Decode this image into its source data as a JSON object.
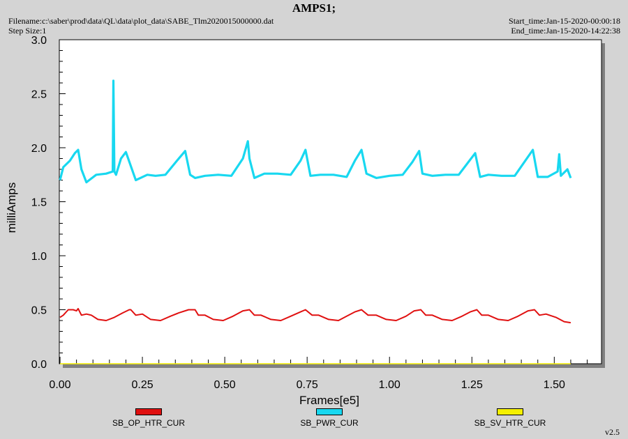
{
  "header": {
    "title": "AMPS1;",
    "filename": "Filename:c:\\saber\\prod\\data\\QL\\data\\plot_data\\SABE_Tlm2020015000000.dat",
    "step_size": "Step Size:1",
    "start_time": "Start_time:Jan-15-2020-00:00:18",
    "end_time": "End_time:Jan-15-2020-14:22:38"
  },
  "footer": {
    "version": "v2.5"
  },
  "colors": {
    "background": "#d4d4d4",
    "plot_area": "#ffffff",
    "SB_OP_HTR_CUR": "#e01010",
    "SB_PWR_CUR": "#18d8f0",
    "SB_SV_HTR_CUR": "#f5f000"
  },
  "chart_data": {
    "type": "line",
    "title": "AMPS1;",
    "xlabel": "Frames[e5]",
    "ylabel": "milliAmps",
    "xlim": [
      0,
      1.62
    ],
    "ylim": [
      0,
      3.0
    ],
    "x_ticks": [
      "0.00",
      "0.25",
      "0.50",
      "0.75",
      "1.00",
      "1.25",
      "1.50"
    ],
    "y_ticks": [
      "0.0",
      "0.5",
      "1.0",
      "1.5",
      "2.0",
      "2.5",
      "3.0"
    ],
    "grid": false,
    "legend_position": "bottom",
    "series": [
      {
        "name": "SB_OP_HTR_CUR",
        "x": [
          0.0,
          0.01,
          0.025,
          0.04,
          0.05,
          0.055,
          0.065,
          0.08,
          0.095,
          0.115,
          0.14,
          0.165,
          0.19,
          0.21,
          0.215,
          0.23,
          0.25,
          0.275,
          0.305,
          0.335,
          0.36,
          0.39,
          0.41,
          0.42,
          0.44,
          0.465,
          0.495,
          0.525,
          0.555,
          0.575,
          0.59,
          0.61,
          0.64,
          0.67,
          0.7,
          0.73,
          0.745,
          0.765,
          0.785,
          0.815,
          0.845,
          0.87,
          0.895,
          0.915,
          0.935,
          0.96,
          0.99,
          1.02,
          1.05,
          1.075,
          1.095,
          1.11,
          1.13,
          1.16,
          1.19,
          1.22,
          1.245,
          1.265,
          1.28,
          1.3,
          1.33,
          1.36,
          1.39,
          1.42,
          1.44,
          1.455,
          1.475,
          1.505,
          1.53,
          1.55
        ],
        "y": [
          0.43,
          0.45,
          0.5,
          0.5,
          0.49,
          0.51,
          0.45,
          0.46,
          0.45,
          0.41,
          0.4,
          0.43,
          0.47,
          0.5,
          0.5,
          0.45,
          0.46,
          0.41,
          0.4,
          0.44,
          0.47,
          0.5,
          0.5,
          0.45,
          0.45,
          0.41,
          0.4,
          0.44,
          0.49,
          0.5,
          0.45,
          0.45,
          0.41,
          0.4,
          0.44,
          0.48,
          0.5,
          0.45,
          0.45,
          0.41,
          0.4,
          0.44,
          0.48,
          0.5,
          0.45,
          0.45,
          0.41,
          0.4,
          0.44,
          0.49,
          0.5,
          0.45,
          0.45,
          0.41,
          0.4,
          0.44,
          0.48,
          0.5,
          0.45,
          0.45,
          0.41,
          0.4,
          0.44,
          0.49,
          0.5,
          0.45,
          0.46,
          0.43,
          0.39,
          0.38
        ]
      },
      {
        "name": "SB_PWR_CUR",
        "x": [
          0.0,
          0.01,
          0.03,
          0.045,
          0.055,
          0.065,
          0.08,
          0.11,
          0.14,
          0.16,
          0.162,
          0.165,
          0.17,
          0.185,
          0.2,
          0.23,
          0.265,
          0.29,
          0.32,
          0.355,
          0.38,
          0.395,
          0.41,
          0.44,
          0.48,
          0.52,
          0.555,
          0.57,
          0.575,
          0.59,
          0.62,
          0.66,
          0.7,
          0.73,
          0.745,
          0.76,
          0.79,
          0.83,
          0.87,
          0.895,
          0.915,
          0.93,
          0.96,
          1.0,
          1.04,
          1.07,
          1.09,
          1.1,
          1.13,
          1.17,
          1.21,
          1.24,
          1.26,
          1.275,
          1.3,
          1.34,
          1.38,
          1.41,
          1.435,
          1.45,
          1.48,
          1.51,
          1.515,
          1.52,
          1.54,
          1.55
        ],
        "y": [
          1.7,
          1.82,
          1.88,
          1.95,
          1.98,
          1.8,
          1.68,
          1.75,
          1.76,
          1.78,
          2.62,
          1.78,
          1.75,
          1.9,
          1.96,
          1.7,
          1.75,
          1.74,
          1.75,
          1.88,
          1.97,
          1.75,
          1.72,
          1.74,
          1.75,
          1.74,
          1.9,
          2.06,
          1.9,
          1.72,
          1.76,
          1.76,
          1.75,
          1.88,
          1.98,
          1.74,
          1.75,
          1.75,
          1.73,
          1.88,
          1.98,
          1.76,
          1.72,
          1.74,
          1.75,
          1.87,
          1.97,
          1.76,
          1.74,
          1.75,
          1.75,
          1.87,
          1.95,
          1.73,
          1.75,
          1.74,
          1.74,
          1.87,
          1.98,
          1.73,
          1.73,
          1.78,
          1.94,
          1.74,
          1.8,
          1.72
        ]
      },
      {
        "name": "SB_SV_HTR_CUR",
        "x": [
          0.0,
          1.55
        ],
        "y": [
          0.0,
          0.0
        ]
      }
    ]
  }
}
